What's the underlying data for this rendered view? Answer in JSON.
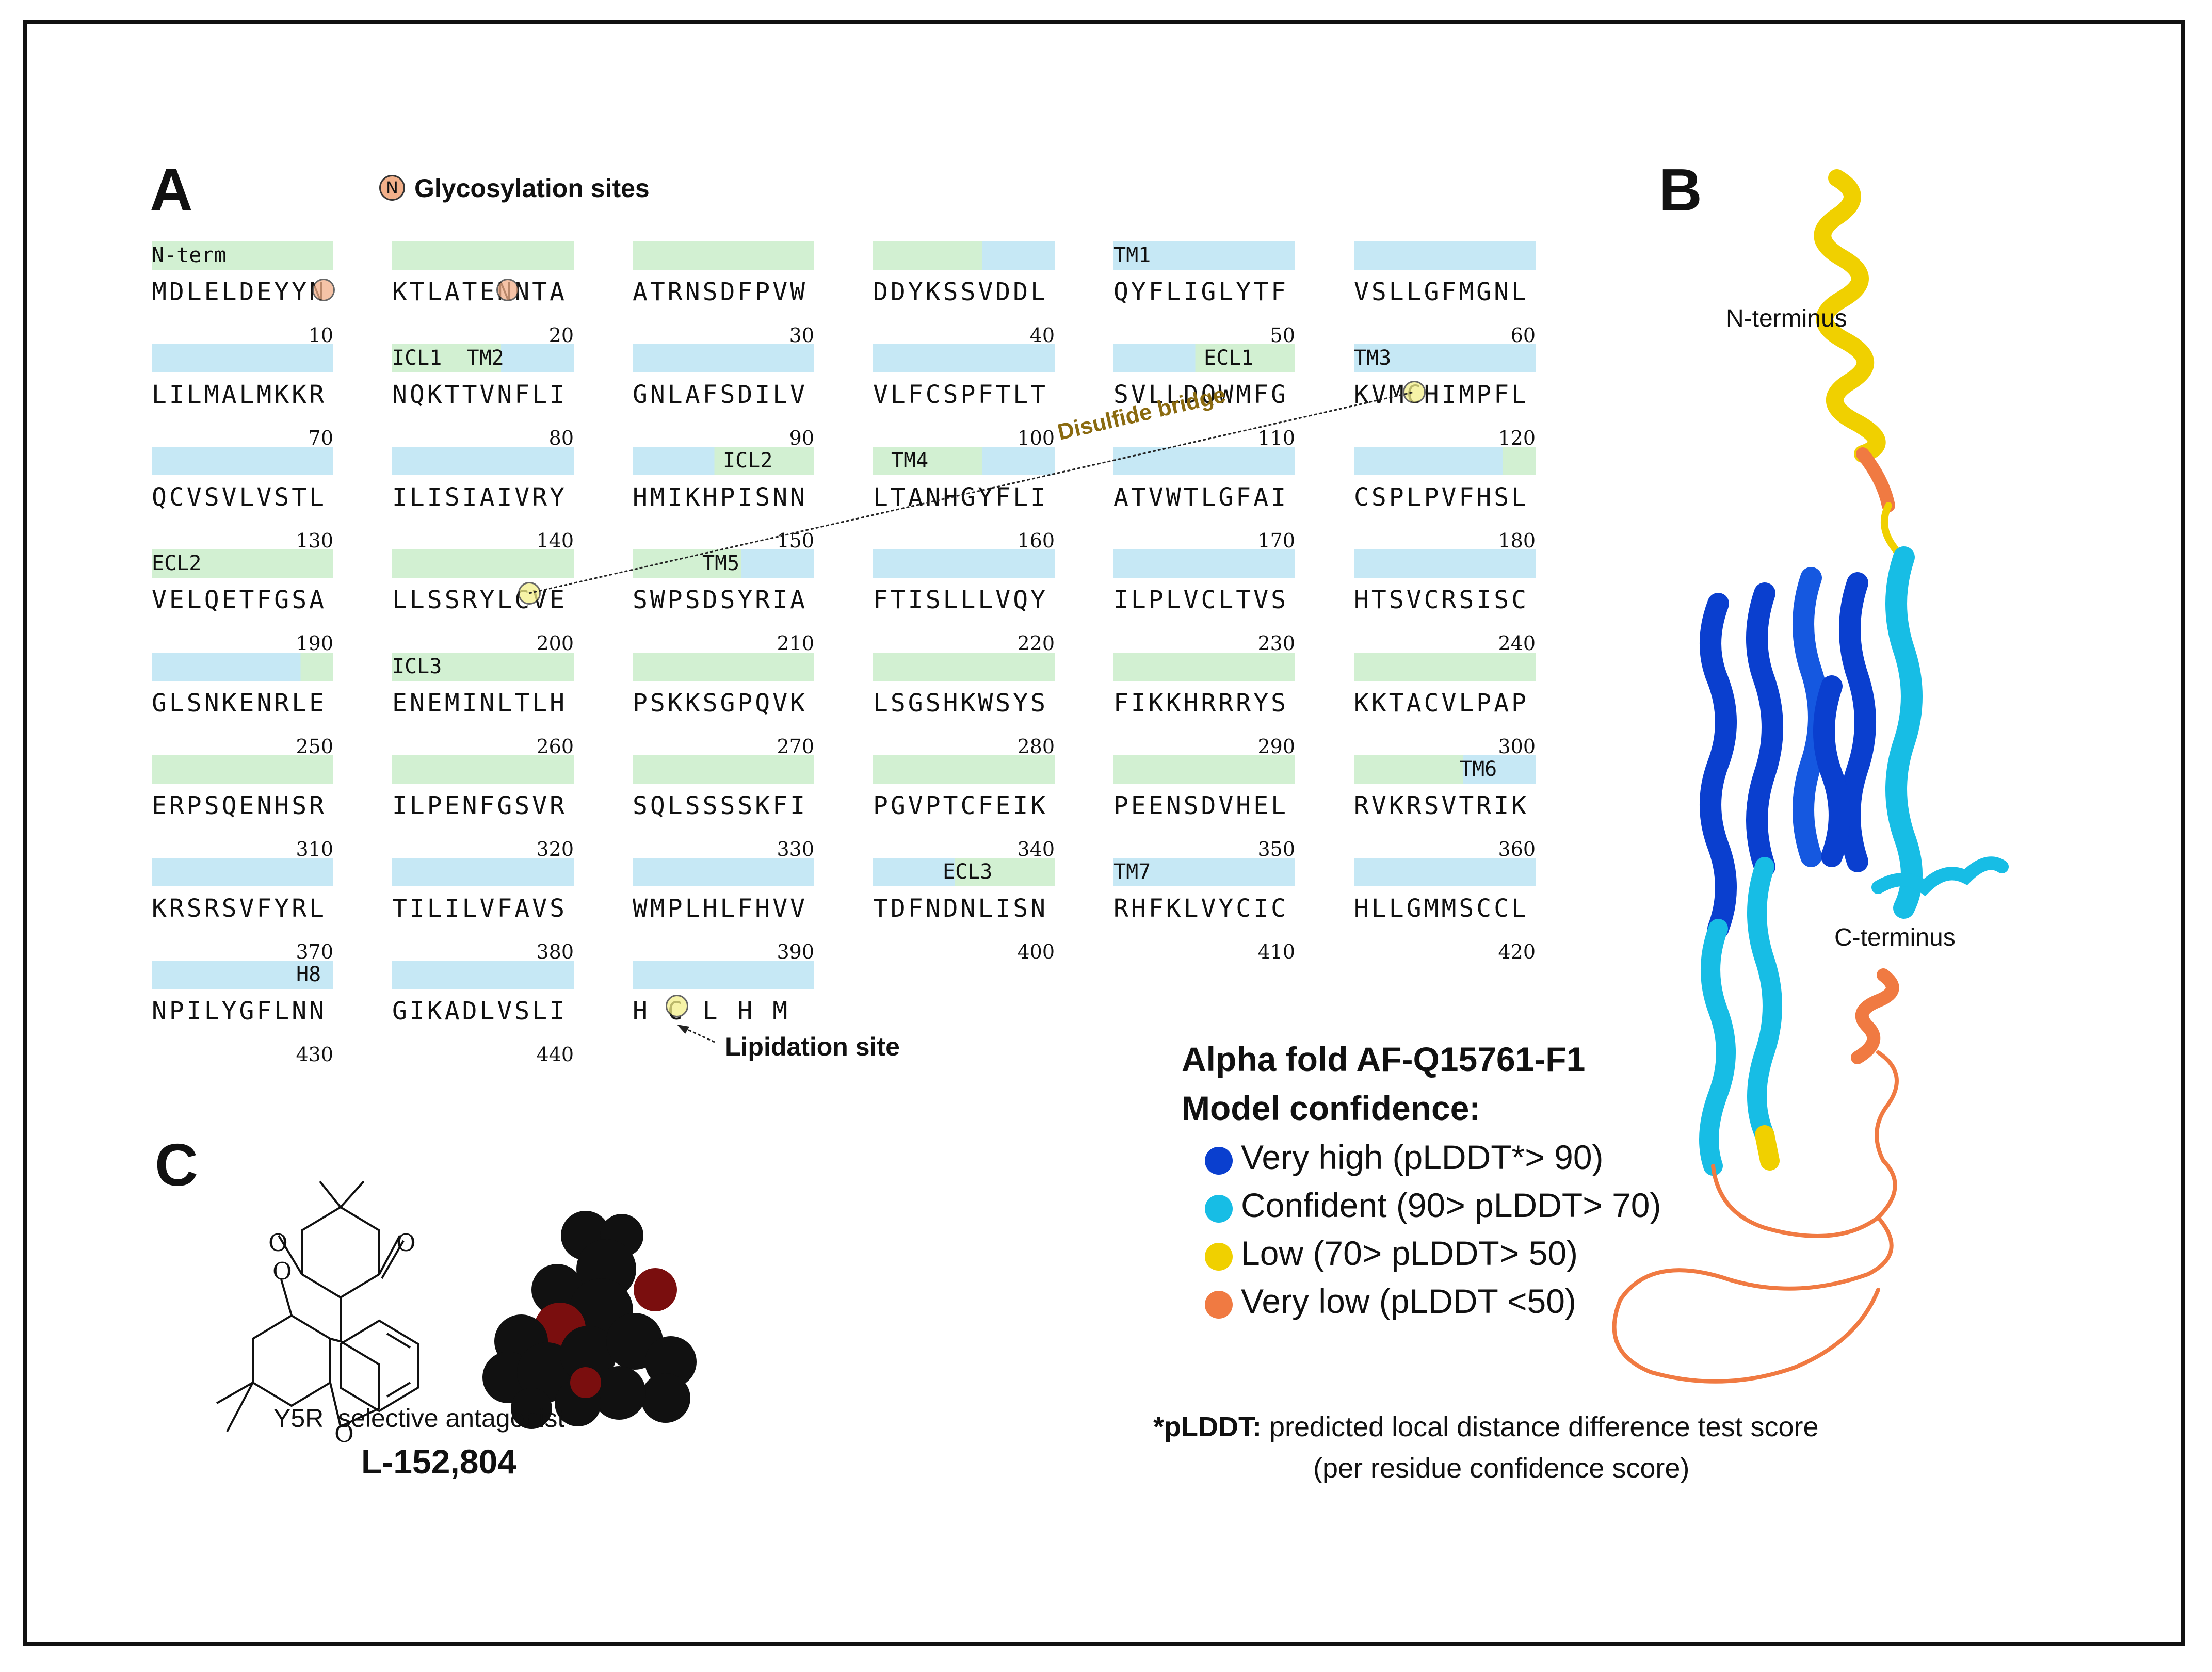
{
  "panels": {
    "a": "A",
    "b": "B",
    "c": "C"
  },
  "glyco_legend": {
    "symbol": "N",
    "label": "Glycosylation sites"
  },
  "colors": {
    "tm": "#c6e8f5",
    "loop": "#d2f0d2",
    "glyco": "#f2b08a",
    "lipid": "#f4f08a",
    "very_high": "#0a3fcf",
    "confident": "#17bde5",
    "low": "#f0d000",
    "very_low": "#f07a42",
    "disulfide": "#8a6a10"
  },
  "sequence_rows": [
    [
      {
        "seq": "MDLELDEYYN",
        "num": "10",
        "label": "N-term",
        "bar": "loop"
      },
      {
        "seq": "KTLATENNTA",
        "num": "20",
        "label": "",
        "bar": "loop"
      },
      {
        "seq": "ATRNSDFPVW",
        "num": "30",
        "label": "",
        "bar": "loop"
      },
      {
        "seq": "DDYKSSVDDL",
        "num": "40",
        "label": "",
        "bar": "mix-loop-tm"
      },
      {
        "seq": "QYFLIGLYTF",
        "num": "50",
        "label": "TM1",
        "bar": "tm"
      },
      {
        "seq": "VSLLGFMGNL",
        "num": "60",
        "label": "",
        "bar": "tm"
      }
    ],
    [
      {
        "seq": "LILMALMKKR",
        "num": "70",
        "label": "",
        "bar": "tm"
      },
      {
        "seq": "NQKTTVNFLI",
        "num": "80",
        "label": "ICL1  TM2",
        "bar": "mix-loop-tm"
      },
      {
        "seq": "GNLAFSDILV",
        "num": "90",
        "label": "",
        "bar": "tm"
      },
      {
        "seq": "VLFCSPFTLT",
        "num": "100",
        "label": "",
        "bar": "tm"
      },
      {
        "seq": "SVLLDQWMFG",
        "num": "110",
        "label": "ECL1",
        "bar": "mix-tm-loop"
      },
      {
        "seq": "KVMCHIMPFL",
        "num": "120",
        "label": "TM3",
        "bar": "tm"
      }
    ],
    [
      {
        "seq": "QCVSVLVSTL",
        "num": "130",
        "label": "",
        "bar": "tm"
      },
      {
        "seq": "ILISIAIVRY",
        "num": "140",
        "label": "",
        "bar": "tm"
      },
      {
        "seq": "HMIKHPISNN",
        "num": "150",
        "label": "ICL2",
        "bar": "mix-tm-loop"
      },
      {
        "seq": "LTANHGYFLI",
        "num": "160",
        "label": "TM4",
        "bar": "mix-loop-tm"
      },
      {
        "seq": "ATVWTLGFAI",
        "num": "170",
        "label": "",
        "bar": "tm"
      },
      {
        "seq": "CSPLPVFHSL",
        "num": "180",
        "label": "",
        "bar": "mix-tm-loop-end"
      }
    ],
    [
      {
        "seq": "VELQETFGSA",
        "num": "190",
        "label": "ECL2",
        "bar": "loop"
      },
      {
        "seq": "LLSSRYLCVE",
        "num": "200",
        "label": "",
        "bar": "loop"
      },
      {
        "seq": "SWPSDSYRIA",
        "num": "210",
        "label": "TM5",
        "bar": "mix-loop-tm"
      },
      {
        "seq": "FTISLLLVQY",
        "num": "220",
        "label": "",
        "bar": "tm"
      },
      {
        "seq": "ILPLVCLTVS",
        "num": "230",
        "label": "",
        "bar": "tm"
      },
      {
        "seq": "HTSVCRSISC",
        "num": "240",
        "label": "",
        "bar": "tm"
      }
    ],
    [
      {
        "seq": "GLSNKENRLE",
        "num": "250",
        "label": "",
        "bar": "mix-tm-loop-end"
      },
      {
        "seq": "ENEMINLTLH",
        "num": "260",
        "label": "ICL3",
        "bar": "loop"
      },
      {
        "seq": "PSKKSGPQVK",
        "num": "270",
        "label": "",
        "bar": "loop"
      },
      {
        "seq": "LSGSHKWSYS",
        "num": "280",
        "label": "",
        "bar": "loop"
      },
      {
        "seq": "FIKKHRRRYS",
        "num": "290",
        "label": "",
        "bar": "loop"
      },
      {
        "seq": "KKTACVLPAP",
        "num": "300",
        "label": "",
        "bar": "loop"
      }
    ],
    [
      {
        "seq": "ERPSQENHSR",
        "num": "310",
        "label": "",
        "bar": "loop"
      },
      {
        "seq": "ILPENFGSVR",
        "num": "320",
        "label": "",
        "bar": "loop"
      },
      {
        "seq": "SQLSSSSKFI",
        "num": "330",
        "label": "",
        "bar": "loop"
      },
      {
        "seq": "PGVPTCFEIK",
        "num": "340",
        "label": "",
        "bar": "loop"
      },
      {
        "seq": "PEENSDVHEL",
        "num": "350",
        "label": "",
        "bar": "loop"
      },
      {
        "seq": "RVKRSVTRIK",
        "num": "360",
        "label": "TM6",
        "bar": "mix-loop-tm"
      }
    ],
    [
      {
        "seq": "KRSRSVFYRL",
        "num": "370",
        "label": "",
        "bar": "tm"
      },
      {
        "seq": "TILILVFAVS",
        "num": "380",
        "label": "",
        "bar": "tm"
      },
      {
        "seq": "WMPLHLFHVV",
        "num": "390",
        "label": "",
        "bar": "tm"
      },
      {
        "seq": "TDFNDNLISN",
        "num": "400",
        "label": "ECL3",
        "bar": "mix-tm-loop"
      },
      {
        "seq": "RHFKLVYCIC",
        "num": "410",
        "label": "TM7",
        "bar": "tm"
      },
      {
        "seq": "HLLGMMSCCL",
        "num": "420",
        "label": "",
        "bar": "tm"
      }
    ],
    [
      {
        "seq": "NPILYGFLNN",
        "num": "430",
        "label": "H8",
        "bar": "tm"
      },
      {
        "seq": "GIKADLVSLI",
        "num": "440",
        "label": "",
        "bar": "tm"
      },
      {
        "seq": "H C L H M",
        "num": "",
        "label": "",
        "bar": "tm"
      }
    ]
  ],
  "annotations": {
    "disulfide": "Disulfide bridge",
    "lipidation": "Lipidation site",
    "n_terminus": "N-terminus",
    "c_terminus": "C-terminus"
  },
  "alphafold": {
    "title": "Alpha fold AF-Q15761-F1",
    "subtitle": "Model confidence:",
    "legend": [
      {
        "label": "Very high (pLDDT*> 90)",
        "color_key": "very_high"
      },
      {
        "label": "Confident (90> pLDDT> 70)",
        "color_key": "confident"
      },
      {
        "label": "Low (70> pLDDT> 50)",
        "color_key": "low"
      },
      {
        "label": "Very low (pLDDT <50)",
        "color_key": "very_low"
      }
    ],
    "footnote_key": "*pLDDT:",
    "footnote_rest": " predicted local distance difference test score",
    "footnote_line2": "(per residue confidence score)"
  },
  "compound": {
    "atom_o": "O",
    "caption": "Y5R  selective antagonist",
    "name": "L-152,804"
  }
}
